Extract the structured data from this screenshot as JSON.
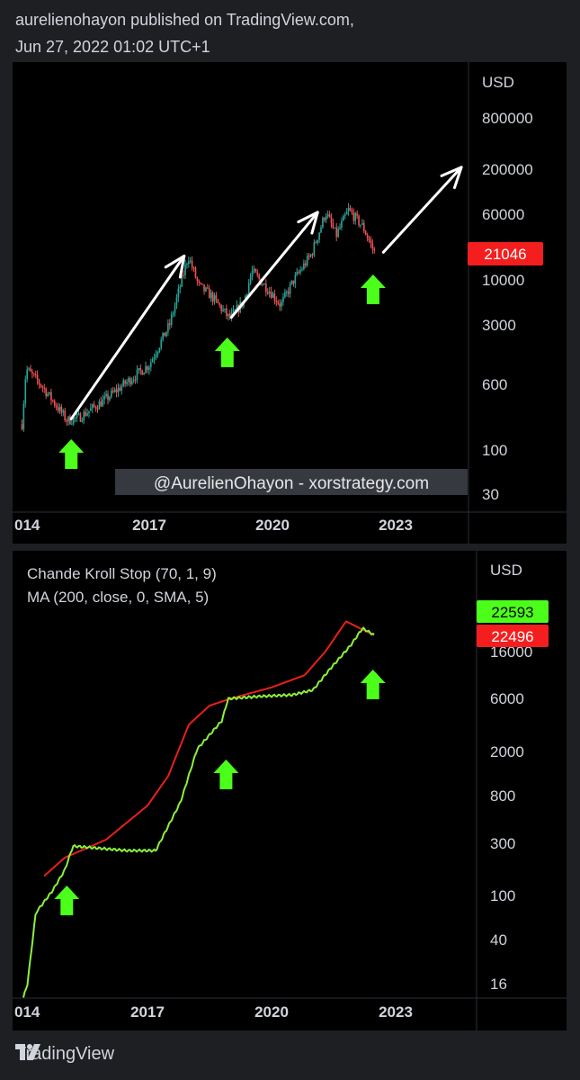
{
  "header": {
    "line1": "aurelienohayon published on TradingView.com,",
    "line2": "Jun 27, 2022 01:02 UTC+1"
  },
  "footer": {
    "brand": "TradingView",
    "icon": "tradingview-logo-icon"
  },
  "colors": {
    "up": "#26a69a",
    "down": "#ef5350",
    "arrow_green": "#4cff1a",
    "ma_red": "#e8201b",
    "cks_green": "#8cf03c",
    "price_tag": "#f51e1e",
    "cks_tag": "#4cff1a"
  },
  "chart_data": [
    {
      "type": "candlestick",
      "scale": "log",
      "currency_label": "USD",
      "y_ticks": [
        "800000",
        "200000",
        "60000",
        "10000",
        "3000",
        "600",
        "100",
        "30"
      ],
      "x_ticks": [
        "014",
        "2017",
        "2020",
        "2023"
      ],
      "last_price": "21046",
      "watermark": "@AurelienOhayon - xorstrategy.com",
      "price_path": [
        {
          "t": 2013.9,
          "v": 200
        },
        {
          "t": 2014.0,
          "v": 900
        },
        {
          "t": 2014.4,
          "v": 550
        },
        {
          "t": 2015.0,
          "v": 220
        },
        {
          "t": 2015.3,
          "v": 240
        },
        {
          "t": 2015.9,
          "v": 380
        },
        {
          "t": 2016.5,
          "v": 650
        },
        {
          "t": 2017.0,
          "v": 1000
        },
        {
          "t": 2017.5,
          "v": 3000
        },
        {
          "t": 2017.95,
          "v": 19000
        },
        {
          "t": 2018.2,
          "v": 8500
        },
        {
          "t": 2018.5,
          "v": 6500
        },
        {
          "t": 2018.95,
          "v": 3500
        },
        {
          "t": 2019.3,
          "v": 5500
        },
        {
          "t": 2019.5,
          "v": 12500
        },
        {
          "t": 2019.95,
          "v": 7200
        },
        {
          "t": 2020.2,
          "v": 5000
        },
        {
          "t": 2020.5,
          "v": 9500
        },
        {
          "t": 2020.95,
          "v": 20000
        },
        {
          "t": 2021.3,
          "v": 62000
        },
        {
          "t": 2021.55,
          "v": 33000
        },
        {
          "t": 2021.85,
          "v": 66000
        },
        {
          "t": 2022.2,
          "v": 42000
        },
        {
          "t": 2022.48,
          "v": 21046
        }
      ],
      "arrows_up": [
        {
          "t": 2015.1
        },
        {
          "t": 2018.9
        },
        {
          "t": 2022.45
        }
      ],
      "trend_arrows": [
        {
          "from": {
            "t": 2015.1,
            "v": 230
          },
          "to": {
            "t": 2017.85,
            "v": 19000
          }
        },
        {
          "from": {
            "t": 2019.0,
            "v": 3600
          },
          "to": {
            "t": 2021.1,
            "v": 62000
          }
        },
        {
          "from": {
            "t": 2022.7,
            "v": 21000
          },
          "to": {
            "t": 2024.6,
            "v": 210000
          }
        }
      ]
    },
    {
      "type": "line",
      "scale": "log",
      "currency_label": "USD",
      "legend": [
        "Chande Kroll Stop (70, 1, 9)",
        "MA (200, close, 0, SMA, 5)"
      ],
      "y_ticks": [
        "16000",
        "6000",
        "2000",
        "800",
        "300",
        "100",
        "40",
        "16"
      ],
      "x_ticks": [
        "014",
        "2017",
        "2020",
        "2023"
      ],
      "last_values": {
        "cks": "22593",
        "ma": "22496"
      },
      "series": [
        {
          "key": "ma",
          "points": [
            {
              "t": 2014.5,
              "v": 150
            },
            {
              "t": 2015.0,
              "v": 220
            },
            {
              "t": 2016.0,
              "v": 320
            },
            {
              "t": 2017.0,
              "v": 650
            },
            {
              "t": 2017.5,
              "v": 1200
            },
            {
              "t": 2018.0,
              "v": 3500
            },
            {
              "t": 2018.5,
              "v": 5200
            },
            {
              "t": 2019.0,
              "v": 6000
            },
            {
              "t": 2020.0,
              "v": 7600
            },
            {
              "t": 2020.8,
              "v": 9800
            },
            {
              "t": 2021.3,
              "v": 16000
            },
            {
              "t": 2021.8,
              "v": 30000
            },
            {
              "t": 2022.48,
              "v": 22496
            }
          ]
        },
        {
          "key": "cks",
          "points": [
            {
              "t": 2014.0,
              "v": 12
            },
            {
              "t": 2014.1,
              "v": 16
            },
            {
              "t": 2014.3,
              "v": 70
            },
            {
              "t": 2014.7,
              "v": 110
            },
            {
              "t": 2015.0,
              "v": 170
            },
            {
              "t": 2015.2,
              "v": 280
            },
            {
              "t": 2016.5,
              "v": 255
            },
            {
              "t": 2017.2,
              "v": 255
            },
            {
              "t": 2017.8,
              "v": 700
            },
            {
              "t": 2018.2,
              "v": 2100
            },
            {
              "t": 2018.8,
              "v": 3800
            },
            {
              "t": 2018.95,
              "v": 6000
            },
            {
              "t": 2019.7,
              "v": 6300
            },
            {
              "t": 2020.5,
              "v": 6500
            },
            {
              "t": 2021.0,
              "v": 7200
            },
            {
              "t": 2021.4,
              "v": 11000
            },
            {
              "t": 2021.9,
              "v": 18000
            },
            {
              "t": 2022.2,
              "v": 26000
            },
            {
              "t": 2022.48,
              "v": 22593
            }
          ]
        }
      ],
      "arrows_up": [
        {
          "t": 2015.05
        },
        {
          "t": 2018.9
        },
        {
          "t": 2022.45
        }
      ]
    }
  ]
}
